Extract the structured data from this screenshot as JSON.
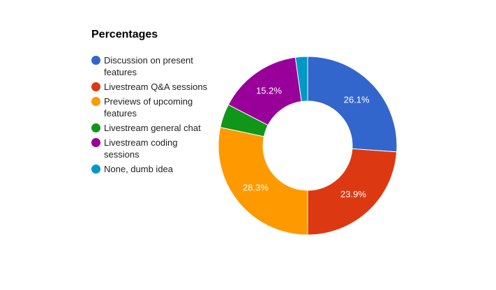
{
  "chart_data": {
    "type": "pie",
    "title": "Percentages",
    "donut": true,
    "legend_position": "left",
    "slices": [
      {
        "label": "Discussion on present features",
        "value": 26.1,
        "display": "26.1%",
        "color": "#3366cc"
      },
      {
        "label": "Livestream Q&A sessions",
        "value": 23.9,
        "display": "23.9%",
        "color": "#dc3912"
      },
      {
        "label": "Previews of upcoming features",
        "value": 28.3,
        "display": "28.3%",
        "color": "#ff9900"
      },
      {
        "label": "Livestream general chat",
        "value": 4.3,
        "display": "",
        "color": "#109618"
      },
      {
        "label": "Livestream coding sessions",
        "value": 15.2,
        "display": "15.2%",
        "color": "#990099"
      },
      {
        "label": "None, dumb idea",
        "value": 2.2,
        "display": "",
        "color": "#0099c6"
      }
    ]
  }
}
